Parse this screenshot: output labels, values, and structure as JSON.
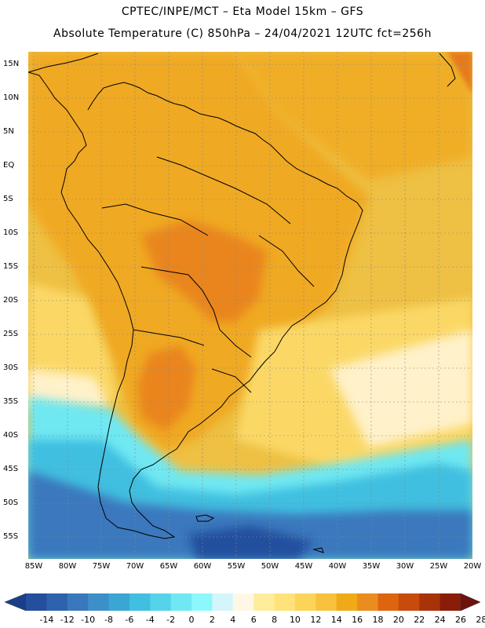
{
  "title": {
    "line1": "CPTEC/INPE/MCT –  Eta Model 15km – GFS",
    "line2": "Absolute Temperature (C) 850hPa – 24/04/2021 12UTC fct=256h"
  },
  "lat_labels": [
    "15N",
    "10N",
    "5N",
    "EQ",
    "5S",
    "10S",
    "15S",
    "20S",
    "25S",
    "30S",
    "35S",
    "40S",
    "45S",
    "50S",
    "55S"
  ],
  "lon_labels": [
    "85W",
    "80W",
    "75W",
    "70W",
    "65W",
    "60W",
    "55W",
    "50W",
    "45W",
    "40W",
    "35W",
    "30W",
    "25W",
    "20W"
  ],
  "colorbar": {
    "labels": [
      "-14",
      "-12",
      "-10",
      "-8",
      "-6",
      "-4",
      "-2",
      "0",
      "2",
      "4",
      "6",
      "8",
      "10",
      "12",
      "14",
      "16",
      "18",
      "20",
      "22",
      "24",
      "26",
      "28"
    ],
    "colors": [
      "#1a3f8a",
      "#244f9c",
      "#2e62ad",
      "#3a78bd",
      "#3c8fc8",
      "#39a6d3",
      "#40bfe0",
      "#54d3ea",
      "#6fe8f2",
      "#8cf8fb",
      "#d3f5fb",
      "#fff7e5",
      "#ffed9c",
      "#ffe27a",
      "#fcd45a",
      "#f8c13e",
      "#f1aa17",
      "#eb8c1f",
      "#de6410",
      "#c84a0c",
      "#a8320a",
      "#8a1d0a",
      "#6e1210"
    ]
  },
  "map": {
    "ocean_warm": "#eec043",
    "land_fill": "#f0a920",
    "hot_core": "#e67e22",
    "cold_deep": "#214f9e"
  }
}
